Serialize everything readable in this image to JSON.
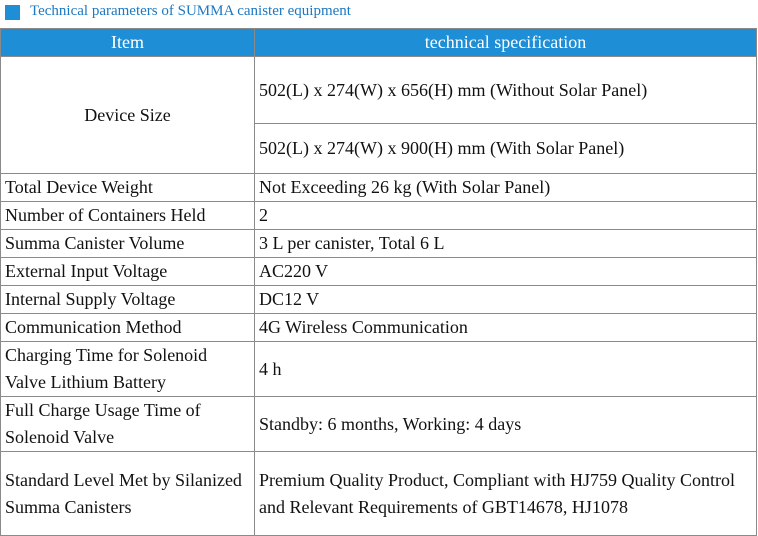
{
  "title": "Technical parameters of SUMMA canister equipment",
  "table": {
    "header": [
      "Item",
      "technical specification"
    ],
    "rows": [
      {
        "item": "Device Size",
        "specs": [
          "502(L) x 274(W) x 656(H) mm (Without Solar Panel)",
          "502(L) x 274(W) x 900(H) mm (With Solar Panel)"
        ]
      },
      {
        "item": "Total Device Weight",
        "specs": [
          "Not Exceeding 26 kg (With Solar Panel)"
        ]
      },
      {
        "item": "Number of Containers Held",
        "specs": [
          "2"
        ]
      },
      {
        "item": "Summa Canister Volume",
        "specs": [
          "3 L per canister, Total 6 L"
        ]
      },
      {
        "item": "External Input Voltage",
        "specs": [
          "AC220 V"
        ]
      },
      {
        "item": "Internal Supply Voltage",
        "specs": [
          "DC12 V"
        ]
      },
      {
        "item": "Communication Method",
        "specs": [
          "4G Wireless Communication"
        ]
      },
      {
        "item": "Charging Time for Solenoid Valve Lithium Battery",
        "specs": [
          "4 h"
        ]
      },
      {
        "item": "Full Charge Usage Time of Solenoid Valve",
        "specs": [
          "Standby: 6 months, Working: 4 days"
        ]
      },
      {
        "item": "Standard Level Met by Silanized Summa Canisters",
        "specs": [
          "Premium Quality Product, Compliant with HJ759 Quality Control and Relevant Requirements of GBT14678, HJ1078"
        ]
      }
    ]
  }
}
